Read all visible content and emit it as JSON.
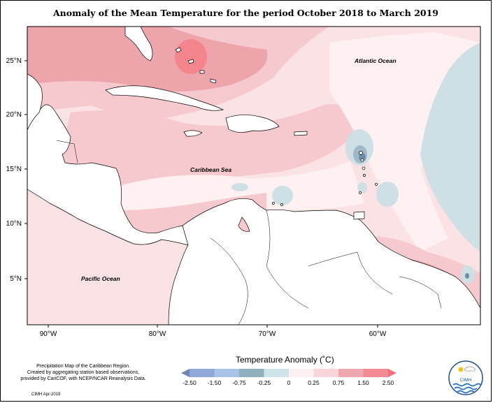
{
  "title": "Anomaly of the Mean Temperature for the period October 2018 to March 2019",
  "map": {
    "lat_labels": [
      "25°N",
      "20°N",
      "15°N",
      "10°N",
      "5°N"
    ],
    "lon_labels": [
      "90°W",
      "80°W",
      "70°W",
      "60°W"
    ],
    "ocean_labels": {
      "atlantic": "Atlantic Ocean",
      "caribbean": "Caribbean Sea",
      "pacific": "Pacific Ocean"
    },
    "colors": {
      "ocean_base": "#fbe2e5",
      "warm_light": "#f6c9ce",
      "warm_mid": "#eda4ab",
      "warm_strong": "#f4858c",
      "cool_light": "#cfe0e5",
      "cool_mid": "#9fb9c8",
      "cool_dark": "#6e8ea8",
      "near_zero": "#fff1f2",
      "land": "#ffffff"
    }
  },
  "legend": {
    "title": "Temperature Anomaly (˚C)",
    "ticks": [
      "-2.50",
      "-1.50",
      "-0.75",
      "-0.25",
      "0",
      "0.25",
      "0.75",
      "1.50",
      "2.50"
    ],
    "colors": [
      "#6f86b9",
      "#8fa8d8",
      "#a9c2e8",
      "#8fb0bd",
      "#cfe4e8",
      "#fdf0f1",
      "#f8d6da",
      "#eea7ae",
      "#f18a92",
      "#f06f79"
    ]
  },
  "footer": {
    "credit_lines": [
      "Precipitation Map of the Caribbean Region.",
      "Created by aggregating station based observations,",
      "provided by CariCOF, with NCEP/NCAR Reanalysis Data."
    ],
    "stamp": "CIMH Apr-2019"
  },
  "logo": {
    "text": "CIMH"
  }
}
